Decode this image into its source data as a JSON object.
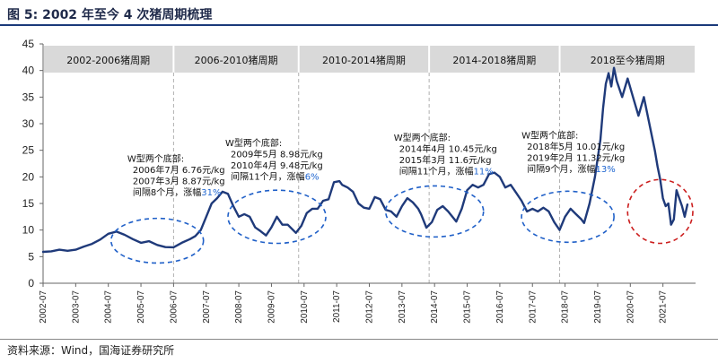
{
  "figure_title": "图 5:  2002 年至今 4 次猪周期梳理",
  "source_note": "资料来源：Wind，国海证券研究所",
  "colors": {
    "line": "#1f3a7a",
    "band": "#d9d9d9",
    "blue_highlight": "#1f66d1",
    "dashed_blue": "#2060c8",
    "dashed_red": "#cc1f1f",
    "divider": "#b0b0b0"
  },
  "chart_data": {
    "type": "line",
    "title": "",
    "xlabel": "",
    "ylabel": "",
    "ylim": [
      0,
      45
    ],
    "yticks": [
      "0",
      "5",
      "10",
      "15",
      "20",
      "25",
      "30",
      "35",
      "40",
      "45"
    ],
    "xlim": [
      "2002-07",
      "2022-07"
    ],
    "xticks": [
      "2002-07",
      "2003-07",
      "2004-07",
      "2005-07",
      "2006-07",
      "2007-07",
      "2008-07",
      "2009-07",
      "2010-07",
      "2011-07",
      "2012-07",
      "2013-07",
      "2014-07",
      "2015-07",
      "2016-07",
      "2017-07",
      "2018-07",
      "2019-07",
      "2020-07",
      "2021-07"
    ],
    "grid": false,
    "legend": "none",
    "cycles": [
      {
        "label": "2002-2006猪周期",
        "start": "2002-07",
        "end": "2006-07"
      },
      {
        "label": "2006-2010猪周期",
        "start": "2006-07",
        "end": "2010-05"
      },
      {
        "label": "2010-2014猪周期",
        "start": "2010-05",
        "end": "2014-05"
      },
      {
        "label": "2014-2018猪周期",
        "start": "2014-05",
        "end": "2018-05"
      },
      {
        "label": "2018至今猪周期",
        "start": "2018-05",
        "end": "2022-07"
      }
    ],
    "annotations": [
      {
        "heading": "W型两个底部:",
        "line1": "2006年7月 6.76元/kg",
        "line2": "2007年3月 8.87元/kg",
        "line3": "间隔8个月，涨幅",
        "pct": "31%",
        "anchor": "2005-02",
        "y": 22.8
      },
      {
        "heading": "W型两个底部:",
        "line1": "2009年5月 8.98元/kg",
        "line2": "2010年4月 9.48元/kg",
        "line3": "间隔11个月，涨幅",
        "pct": "6%",
        "anchor": "2008-02",
        "y": 25.8
      },
      {
        "heading": "W型两个底部:",
        "line1": "2014年4月 10.45元/kg",
        "line2": "2015年3月 11.6元/kg",
        "line3": "间隔11个月，涨幅",
        "pct": "11%",
        "anchor": "2013-04",
        "y": 26.8
      },
      {
        "heading": "W型两个底部:",
        "line1": "2018年5月 10.01元/kg",
        "line2": "2019年2月 11.32元/kg",
        "line3": "间隔9个月，涨幅",
        "pct": "13%",
        "anchor": "2017-03",
        "y": 27.2
      }
    ],
    "ellipses": [
      {
        "color": "blue",
        "cx": "2006-01",
        "cy": 8.0,
        "rx_months": 17,
        "ry": 4.2
      },
      {
        "color": "blue",
        "cx": "2009-09",
        "cy": 12.5,
        "rx_months": 18,
        "ry": 5.0
      },
      {
        "color": "blue",
        "cx": "2014-07",
        "cy": 13.5,
        "rx_months": 18,
        "ry": 4.8
      },
      {
        "color": "blue",
        "cx": "2018-08",
        "cy": 12.5,
        "rx_months": 17,
        "ry": 4.8
      },
      {
        "color": "red",
        "cx": "2021-06",
        "cy": 13.5,
        "rx_months": 12,
        "ry": 6.0
      }
    ],
    "series": [
      {
        "x": [
          "2002-07",
          "2002-10",
          "2003-01",
          "2003-04",
          "2003-07",
          "2003-10",
          "2004-01",
          "2004-04",
          "2004-07",
          "2004-10",
          "2005-01",
          "2005-04",
          "2005-07",
          "2005-10",
          "2006-01",
          "2006-04",
          "2006-07",
          "2006-10",
          "2007-01",
          "2007-03",
          "2007-05",
          "2007-07",
          "2007-09",
          "2007-11",
          "2008-01",
          "2008-03",
          "2008-05",
          "2008-07",
          "2008-09",
          "2008-11",
          "2009-01",
          "2009-03",
          "2009-05",
          "2009-07",
          "2009-09",
          "2009-11",
          "2010-01",
          "2010-04",
          "2010-06",
          "2010-08",
          "2010-10",
          "2010-12",
          "2011-02",
          "2011-04",
          "2011-06",
          "2011-08",
          "2011-09",
          "2011-11",
          "2012-01",
          "2012-03",
          "2012-05",
          "2012-07",
          "2012-09",
          "2012-11",
          "2013-01",
          "2013-03",
          "2013-05",
          "2013-07",
          "2013-09",
          "2013-11",
          "2014-01",
          "2014-02",
          "2014-04",
          "2014-06",
          "2014-08",
          "2014-10",
          "2014-12",
          "2015-03",
          "2015-05",
          "2015-07",
          "2015-09",
          "2015-11",
          "2016-01",
          "2016-03",
          "2016-05",
          "2016-07",
          "2016-09",
          "2016-11",
          "2017-01",
          "2017-03",
          "2017-05",
          "2017-07",
          "2017-09",
          "2017-11",
          "2018-01",
          "2018-03",
          "2018-05",
          "2018-07",
          "2018-09",
          "2018-11",
          "2019-01",
          "2019-02",
          "2019-04",
          "2019-06",
          "2019-08",
          "2019-09",
          "2019-10",
          "2019-11",
          "2019-12",
          "2020-01",
          "2020-02",
          "2020-04",
          "2020-06",
          "2020-08",
          "2020-10",
          "2020-12",
          "2021-02",
          "2021-04",
          "2021-05",
          "2021-06",
          "2021-07",
          "2021-08",
          "2021-09",
          "2021-10",
          "2021-11",
          "2021-12",
          "2022-01",
          "2022-02",
          "2022-03",
          "2022-04"
        ],
        "values": [
          5.9,
          6.0,
          6.3,
          6.1,
          6.3,
          6.9,
          7.4,
          8.2,
          9.3,
          9.7,
          9.1,
          8.3,
          7.6,
          7.9,
          7.2,
          6.8,
          6.76,
          7.6,
          8.3,
          8.87,
          10.0,
          12.5,
          15.0,
          16.0,
          17.2,
          16.8,
          14.5,
          12.5,
          13.0,
          12.5,
          10.5,
          9.8,
          8.98,
          10.5,
          12.5,
          11.0,
          11.0,
          9.48,
          10.8,
          13.2,
          14.0,
          14.0,
          15.5,
          15.8,
          19.0,
          19.2,
          18.5,
          18.0,
          17.2,
          15.0,
          14.2,
          14.0,
          16.2,
          15.8,
          13.8,
          13.5,
          12.5,
          14.5,
          16.0,
          15.2,
          14.0,
          13.0,
          10.45,
          11.5,
          13.8,
          14.5,
          13.5,
          11.6,
          14.0,
          17.5,
          18.5,
          18.0,
          18.5,
          20.5,
          20.8,
          20.0,
          18.0,
          18.5,
          17.0,
          15.5,
          13.5,
          14.0,
          13.5,
          14.2,
          13.5,
          11.5,
          10.01,
          12.5,
          14.0,
          13.0,
          12.0,
          11.32,
          15.0,
          20.0,
          27.0,
          33.0,
          37.5,
          39.5,
          37.0,
          40.5,
          38.0,
          35.0,
          38.5,
          35.0,
          31.5,
          35.0,
          30.0,
          25.0,
          22.0,
          19.5,
          16.0,
          14.5,
          15.0,
          11.0,
          12.0,
          17.5,
          16.0,
          14.5,
          12.5,
          14.8
        ]
      }
    ]
  }
}
